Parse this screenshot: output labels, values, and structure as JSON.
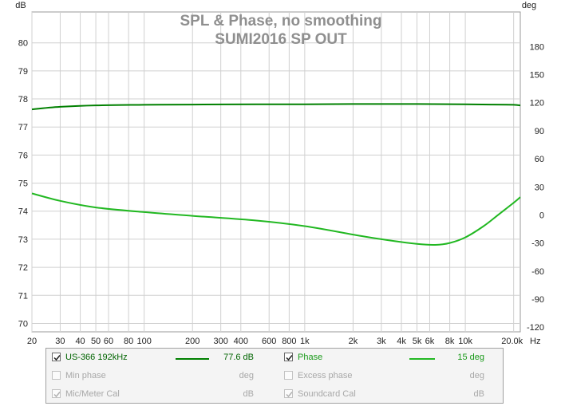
{
  "chart_data": {
    "type": "line",
    "title": "SPL & Phase, no smoothing",
    "subtitle": "SUMI2016 SP OUT",
    "left_axis": {
      "label": "dB",
      "ylim": [
        69.7,
        81.1
      ],
      "ticks": [
        80,
        79,
        78,
        77,
        76,
        75,
        74,
        73,
        72,
        71,
        70
      ],
      "tick_labels": [
        "80",
        "79",
        "78",
        "77",
        "76",
        "75",
        "74",
        "73",
        "72",
        "71",
        "70"
      ]
    },
    "right_axis": {
      "label": "deg",
      "ylim": [
        -125,
        217
      ],
      "ticks": [
        180,
        150,
        120,
        90,
        60,
        30,
        0,
        -30,
        -60,
        -90,
        -120
      ],
      "tick_labels": [
        "180",
        "150",
        "120",
        "90",
        "60",
        "30",
        "0",
        "-30",
        "-60",
        "-90",
        "-120"
      ]
    },
    "x_axis": {
      "scale": "log",
      "xlim": [
        20,
        22000
      ],
      "unit_label": "Hz",
      "ticks": [
        20,
        30,
        40,
        50,
        60,
        80,
        100,
        200,
        300,
        400,
        600,
        800,
        1000,
        2000,
        3000,
        4000,
        5000,
        6000,
        8000,
        10000,
        20000
      ],
      "tick_labels": [
        "20",
        "30",
        "40",
        "50",
        "60",
        "80",
        "100",
        "200",
        "300",
        "400",
        "600",
        "800",
        "1k",
        "2k",
        "3k",
        "4k",
        "5k",
        "6k",
        "8k",
        "10k",
        "20.0k"
      ]
    },
    "grid": true,
    "series": [
      {
        "name": "US-366 192kHz",
        "axis": "left",
        "color": "#008000",
        "x": [
          20,
          30,
          50,
          100,
          200,
          500,
          1000,
          2000,
          5000,
          10000,
          15000,
          20000,
          22000
        ],
        "y": [
          77.63,
          77.72,
          77.77,
          77.79,
          77.8,
          77.81,
          77.81,
          77.82,
          77.82,
          77.81,
          77.8,
          77.79,
          77.77
        ]
      },
      {
        "name": "Phase",
        "axis": "right",
        "color": "#22b822",
        "x": [
          20,
          30,
          50,
          100,
          200,
          500,
          1000,
          2000,
          3000,
          5000,
          6500,
          8000,
          10000,
          13000,
          16000,
          20000,
          22000
        ],
        "y": [
          23,
          15,
          8,
          3,
          -1,
          -6,
          -12,
          -21,
          -26,
          -31,
          -32,
          -30,
          -24,
          -12,
          0,
          13,
          19
        ]
      }
    ]
  },
  "legend": {
    "row1": {
      "label": "US-366 192kHz",
      "value": "77.6 dB",
      "color": "#008000",
      "label2": "Phase",
      "value2": "15 deg",
      "color2": "#22b822"
    },
    "row2": {
      "label": "Min phase",
      "unit": "deg",
      "label2": "Excess phase",
      "unit2": "deg"
    },
    "row3": {
      "label": "Mic/Meter Cal",
      "unit": "dB",
      "label2": "Soundcard Cal",
      "unit2": "dB"
    }
  }
}
